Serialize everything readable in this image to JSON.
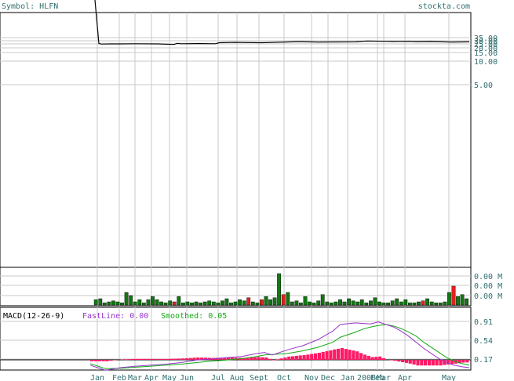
{
  "header": {
    "symbol_label": "Symbol: HLFN",
    "site": "stockta.com"
  },
  "colors": {
    "axis_text": "#2f6f6f",
    "grid": "#c8c8c8",
    "price_line": "#000000",
    "volume_up": "#117711",
    "volume_down": "#dd2222",
    "macd_fast": "#9933cc",
    "macd_smoothed": "#11aa11",
    "macd_histogram": "#ff1a66"
  },
  "x_axis": {
    "labels": [
      "Jan",
      "Feb",
      "Mar",
      "Apr",
      "May",
      "Jun",
      "Jul",
      "Aug",
      "Sept",
      "Oct",
      "Nov",
      "Dec",
      "Jan",
      "2008",
      "Feb",
      "Mar",
      "Apr",
      "May"
    ]
  },
  "chart_data": [
    {
      "type": "line",
      "name": "price",
      "y_scale": "log",
      "y_tick_labels": [
        "35.00",
        "30.00",
        "25.00",
        "20.00",
        "15.00",
        "10.00",
        "5.00"
      ],
      "y_ticks": [
        35,
        30,
        25,
        20,
        15,
        10,
        5
      ],
      "x": [
        0,
        1,
        3,
        5,
        8,
        12,
        18,
        22,
        23,
        24,
        28,
        33,
        34,
        38,
        45,
        55,
        60,
        70,
        73,
        78,
        80,
        84,
        86,
        90,
        95,
        100
      ],
      "values": [
        80,
        27.5,
        27.2,
        27.3,
        27.3,
        27.4,
        27.3,
        27,
        27.6,
        27.4,
        27.5,
        27.4,
        28.0,
        28.2,
        28.0,
        28.6,
        28.4,
        28.5,
        29.0,
        28.8,
        28.7,
        28.8,
        28.6,
        28.7,
        28.4,
        28.5
      ],
      "grid": true
    },
    {
      "type": "bar",
      "name": "volume",
      "y_tick_labels": [
        "0.00 M",
        "0.00 M",
        "0.00 M"
      ],
      "values": [
        5,
        6,
        2,
        3,
        4,
        3,
        2,
        12,
        9,
        3,
        5,
        2,
        5,
        8,
        5,
        3,
        2,
        4,
        3,
        8,
        2,
        3,
        2,
        3,
        2,
        3,
        4,
        3,
        2,
        4,
        6,
        2,
        3,
        5,
        4,
        7,
        3,
        2,
        5,
        8,
        5,
        7,
        30,
        10,
        12,
        3,
        4,
        2,
        8,
        3,
        2,
        4,
        10,
        3,
        2,
        3,
        5,
        3,
        6,
        4,
        3,
        5,
        2,
        4,
        7,
        3,
        2,
        2,
        4,
        6,
        3,
        5,
        2,
        2,
        3,
        4,
        6,
        3,
        2,
        2,
        3,
        12,
        18,
        8,
        10,
        6
      ],
      "down": [
        false,
        false,
        false,
        false,
        false,
        false,
        false,
        false,
        false,
        false,
        false,
        false,
        false,
        false,
        false,
        false,
        false,
        false,
        true,
        false,
        false,
        false,
        false,
        false,
        false,
        false,
        false,
        false,
        false,
        false,
        false,
        false,
        false,
        false,
        false,
        true,
        false,
        false,
        true,
        false,
        false,
        false,
        false,
        true,
        false,
        false,
        false,
        false,
        false,
        false,
        false,
        false,
        false,
        false,
        false,
        false,
        false,
        false,
        false,
        false,
        false,
        false,
        false,
        false,
        false,
        false,
        false,
        false,
        false,
        false,
        false,
        false,
        false,
        false,
        false,
        true,
        false,
        false,
        false,
        false,
        false,
        false,
        true,
        false,
        false,
        false
      ]
    },
    {
      "type": "line",
      "name": "macd",
      "title": "MACD(12-26-9)",
      "fast_label": "FastLine: 0.00",
      "smoothed_label": "Smoothed: 0.05",
      "y_tick_labels": [
        "0.91",
        "0.54",
        "0.17"
      ],
      "y_ticks": [
        0.91,
        0.54,
        0.17
      ],
      "ylim": [
        -0.15,
        1.05
      ],
      "x": [
        0,
        4,
        8,
        12,
        16,
        20,
        24,
        28,
        32,
        36,
        40,
        44,
        46,
        48,
        52,
        56,
        60,
        64,
        66,
        70,
        72,
        74,
        76,
        78,
        80,
        82,
        84,
        86,
        88,
        90,
        92,
        94,
        96,
        98,
        100
      ],
      "fast": [
        0.05,
        -0.05,
        0.0,
        0.03,
        0.05,
        0.07,
        0.1,
        0.15,
        0.17,
        0.2,
        0.22,
        0.28,
        0.3,
        0.25,
        0.35,
        0.43,
        0.55,
        0.72,
        0.85,
        0.88,
        0.87,
        0.86,
        0.9,
        0.85,
        0.8,
        0.72,
        0.62,
        0.5,
        0.38,
        0.28,
        0.18,
        0.1,
        0.05,
        0.02,
        0.0
      ],
      "smoothed": [
        0.08,
        -0.02,
        -0.01,
        0.01,
        0.03,
        0.05,
        0.07,
        0.1,
        0.13,
        0.15,
        0.18,
        0.22,
        0.25,
        0.26,
        0.28,
        0.33,
        0.4,
        0.5,
        0.6,
        0.7,
        0.76,
        0.8,
        0.83,
        0.85,
        0.82,
        0.77,
        0.7,
        0.62,
        0.5,
        0.4,
        0.3,
        0.2,
        0.13,
        0.08,
        0.05
      ]
    }
  ]
}
